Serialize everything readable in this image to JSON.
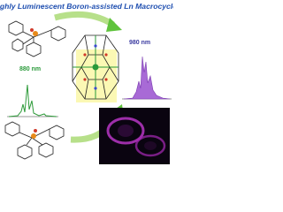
{
  "title": "Highly Luminescent Boron-assisted Ln Macrocycles",
  "labels": [
    "980 nm",
    "880 nm"
  ]
}
